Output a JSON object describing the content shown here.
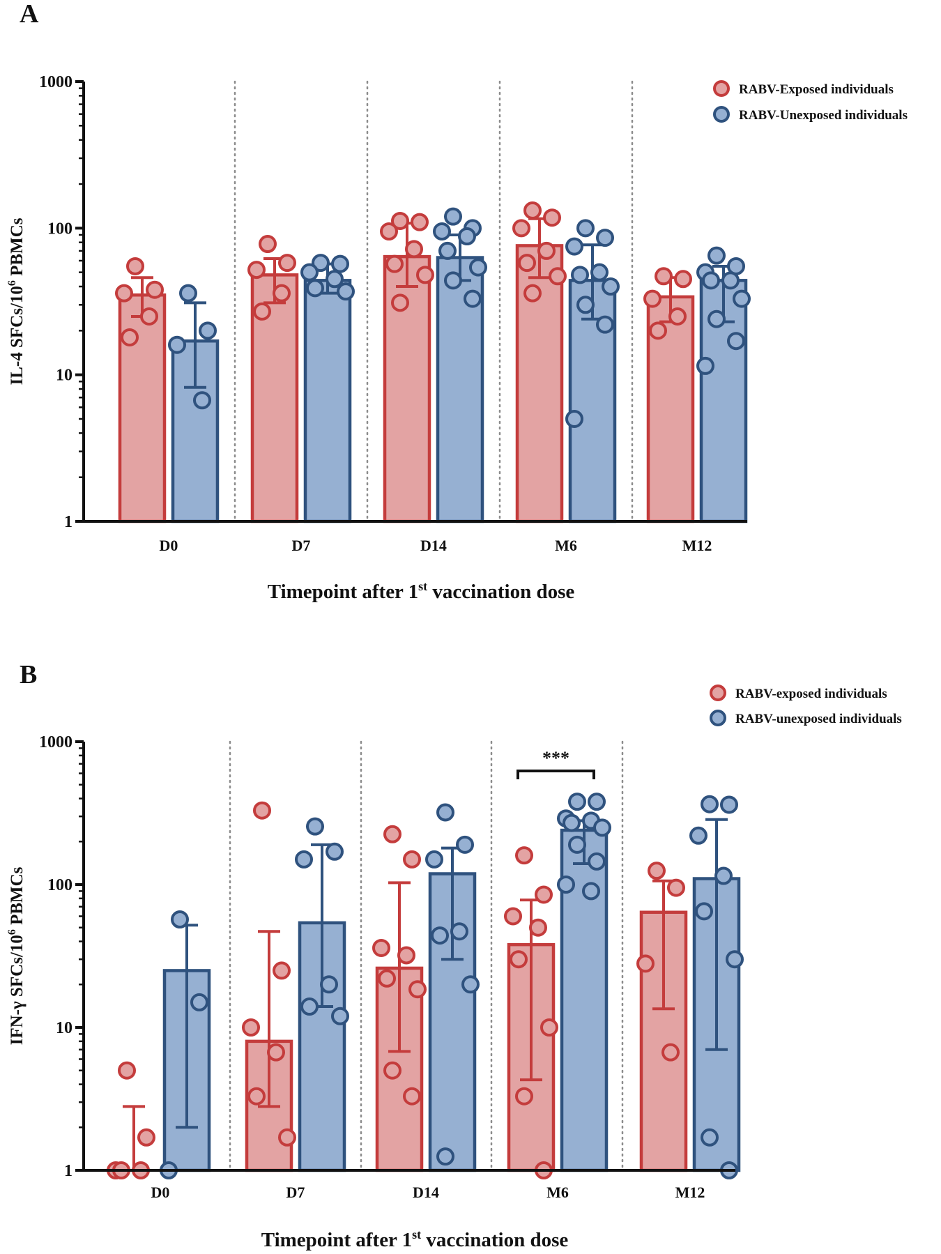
{
  "colors": {
    "exposed_fill": "#e3a3a3",
    "exposed_stroke": "#c43c3c",
    "unexposed_fill": "#96b0d2",
    "unexposed_stroke": "#2f527e",
    "divider": "#8c8c8c",
    "axis": "#111111"
  },
  "chart_data": [
    {
      "type": "bar",
      "panel_label": "A",
      "yscale": "log",
      "ylim": [
        1,
        1000
      ],
      "yticks": [
        "1",
        "10",
        "100",
        "1000"
      ],
      "ylabel": {
        "text": "IL-4 SFCs/10",
        "sup": "6",
        "tail": " PBMCs"
      },
      "xlabel": {
        "text": "Timepoint after 1",
        "sup": "st",
        "tail": " vaccination dose"
      },
      "categories": [
        "D0",
        "D7",
        "D14",
        "M6",
        "M12"
      ],
      "legend": [
        "RABV-Exposed individuals",
        "RABV-Unexposed individuals"
      ],
      "series": [
        {
          "name": "RABV-Exposed individuals",
          "values": [
            35,
            48,
            64,
            76,
            34
          ],
          "error": [
            [
              25,
              46
            ],
            [
              31,
              62
            ],
            [
              40,
              108
            ],
            [
              46,
              116
            ],
            [
              23,
              46
            ]
          ],
          "points": [
            [
              55,
              38,
              36,
              25,
              18
            ],
            [
              78,
              58,
              52,
              36,
              27
            ],
            [
              112,
              110,
              95,
              72,
              57,
              48,
              31
            ],
            [
              132,
              118,
              100,
              70,
              58,
              47,
              36
            ],
            [
              47,
              45,
              33,
              25,
              20
            ]
          ]
        },
        {
          "name": "RABV-Unexposed individuals",
          "values": [
            17,
            44,
            63,
            44,
            44
          ],
          "error": [
            [
              8.2,
              31
            ],
            [
              36,
              57
            ],
            [
              44,
              90
            ],
            [
              24,
              77
            ],
            [
              23,
              55
            ]
          ],
          "points": [
            [
              36,
              20,
              16,
              6.7
            ],
            [
              58,
              57,
              50,
              45,
              39,
              37
            ],
            [
              120,
              100,
              95,
              88,
              70,
              54,
              44,
              33
            ],
            [
              100,
              86,
              75,
              50,
              48,
              40,
              30,
              22,
              5
            ],
            [
              65,
              55,
              50,
              44,
              44,
              33,
              24,
              17,
              11.5
            ]
          ]
        }
      ]
    },
    {
      "type": "bar",
      "panel_label": "B",
      "yscale": "log",
      "ylim": [
        1,
        1000
      ],
      "yticks": [
        "1",
        "10",
        "100",
        "1000"
      ],
      "ylabel": {
        "text": "IFN-γ SFCs/10",
        "sup": "6",
        "tail": " PBMCs"
      },
      "xlabel": {
        "text": "Timepoint after 1",
        "sup": "st",
        "tail": " vaccination dose"
      },
      "categories": [
        "D0",
        "D7",
        "D14",
        "M6",
        "M12"
      ],
      "legend": [
        "RABV-exposed individuals",
        "RABV-unexposed individuals"
      ],
      "annotations": [
        {
          "text": "***",
          "category": "M6"
        }
      ],
      "series": [
        {
          "name": "RABV-exposed individuals",
          "values": [
            1,
            8,
            26,
            38,
            64
          ],
          "error": [
            [
              1,
              2.8
            ],
            [
              2.8,
              47
            ],
            [
              6.8,
              103
            ],
            [
              4.3,
              78
            ],
            [
              13.5,
              106
            ]
          ],
          "points": [
            [
              5,
              1.7,
              1,
              1,
              1
            ],
            [
              330,
              25,
              10,
              6.7,
              3.3,
              1.7
            ],
            [
              225,
              150,
              36,
              32,
              22,
              18.5,
              5,
              3.3
            ],
            [
              160,
              85,
              60,
              50,
              30,
              10,
              3.3,
              1
            ],
            [
              125,
              95,
              28,
              6.7
            ]
          ]
        },
        {
          "name": "RABV-unexposed individuals",
          "values": [
            25,
            54,
            119,
            240,
            110
          ],
          "error": [
            [
              2,
              52
            ],
            [
              14,
              190
            ],
            [
              30,
              180
            ],
            [
              140,
              280
            ],
            [
              7,
              285
            ]
          ],
          "points": [
            [
              57,
              15,
              1
            ],
            [
              255,
              170,
              150,
              20,
              14,
              12
            ],
            [
              320,
              190,
              150,
              47,
              44,
              20,
              1.25
            ],
            [
              380,
              380,
              290,
              280,
              270,
              250,
              190,
              145,
              100,
              90
            ],
            [
              365,
              362,
              220,
              115,
              65,
              30,
              1.7,
              1
            ]
          ]
        }
      ]
    }
  ]
}
